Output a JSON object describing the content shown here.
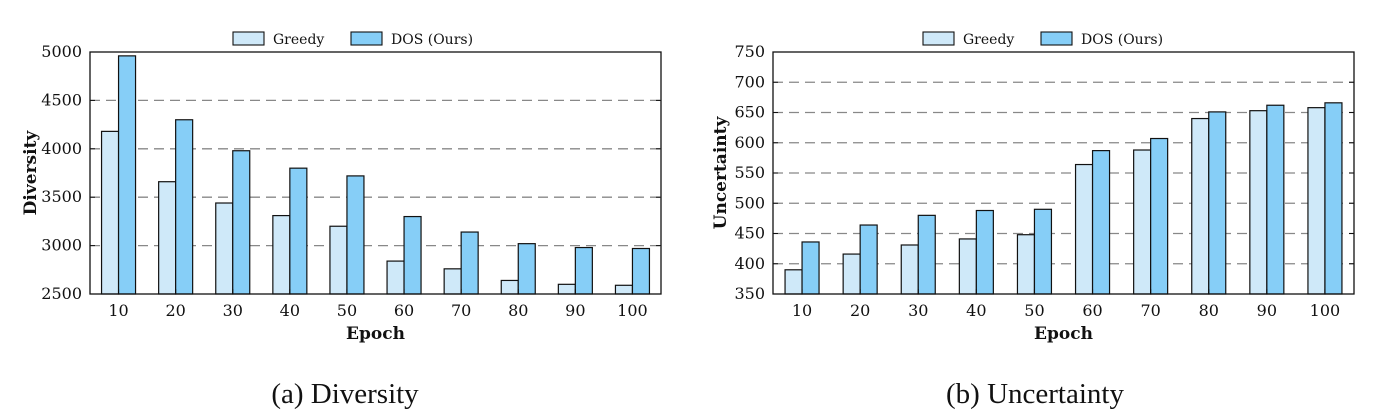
{
  "colors": {
    "greedy": "#cfe9f9",
    "dos": "#86cef7",
    "grid": "#888888",
    "edge": "#111111"
  },
  "chart_data": [
    {
      "type": "bar",
      "caption": "(a) Diversity",
      "xlabel": "Epoch",
      "ylabel": "Diversity",
      "categories": [
        "10",
        "20",
        "30",
        "40",
        "50",
        "60",
        "70",
        "80",
        "90",
        "100"
      ],
      "ylim": [
        2500,
        5000
      ],
      "yticks": [
        2500,
        3000,
        3500,
        4000,
        4500,
        5000
      ],
      "grid": "horizontal dashed",
      "legend": "top-center",
      "series": [
        {
          "name": "Greedy",
          "values": [
            4180,
            3660,
            3440,
            3310,
            3200,
            2840,
            2760,
            2640,
            2600,
            2590
          ]
        },
        {
          "name": "DOS (Ours)",
          "values": [
            4960,
            4300,
            3980,
            3800,
            3720,
            3300,
            3140,
            3020,
            2980,
            2970
          ]
        }
      ]
    },
    {
      "type": "bar",
      "caption": "(b) Uncertainty",
      "xlabel": "Epoch",
      "ylabel": "Uncertainty",
      "categories": [
        "10",
        "20",
        "30",
        "40",
        "50",
        "60",
        "70",
        "80",
        "90",
        "100"
      ],
      "ylim": [
        350,
        750
      ],
      "yticks": [
        350,
        400,
        450,
        500,
        550,
        600,
        650,
        700,
        750
      ],
      "grid": "horizontal dashed",
      "legend": "top-center",
      "series": [
        {
          "name": "Greedy",
          "values": [
            390,
            416,
            431,
            441,
            448,
            564,
            588,
            640,
            653,
            658
          ]
        },
        {
          "name": "DOS (Ours)",
          "values": [
            436,
            464,
            480,
            488,
            490,
            587,
            607,
            651,
            662,
            666
          ]
        }
      ]
    }
  ]
}
